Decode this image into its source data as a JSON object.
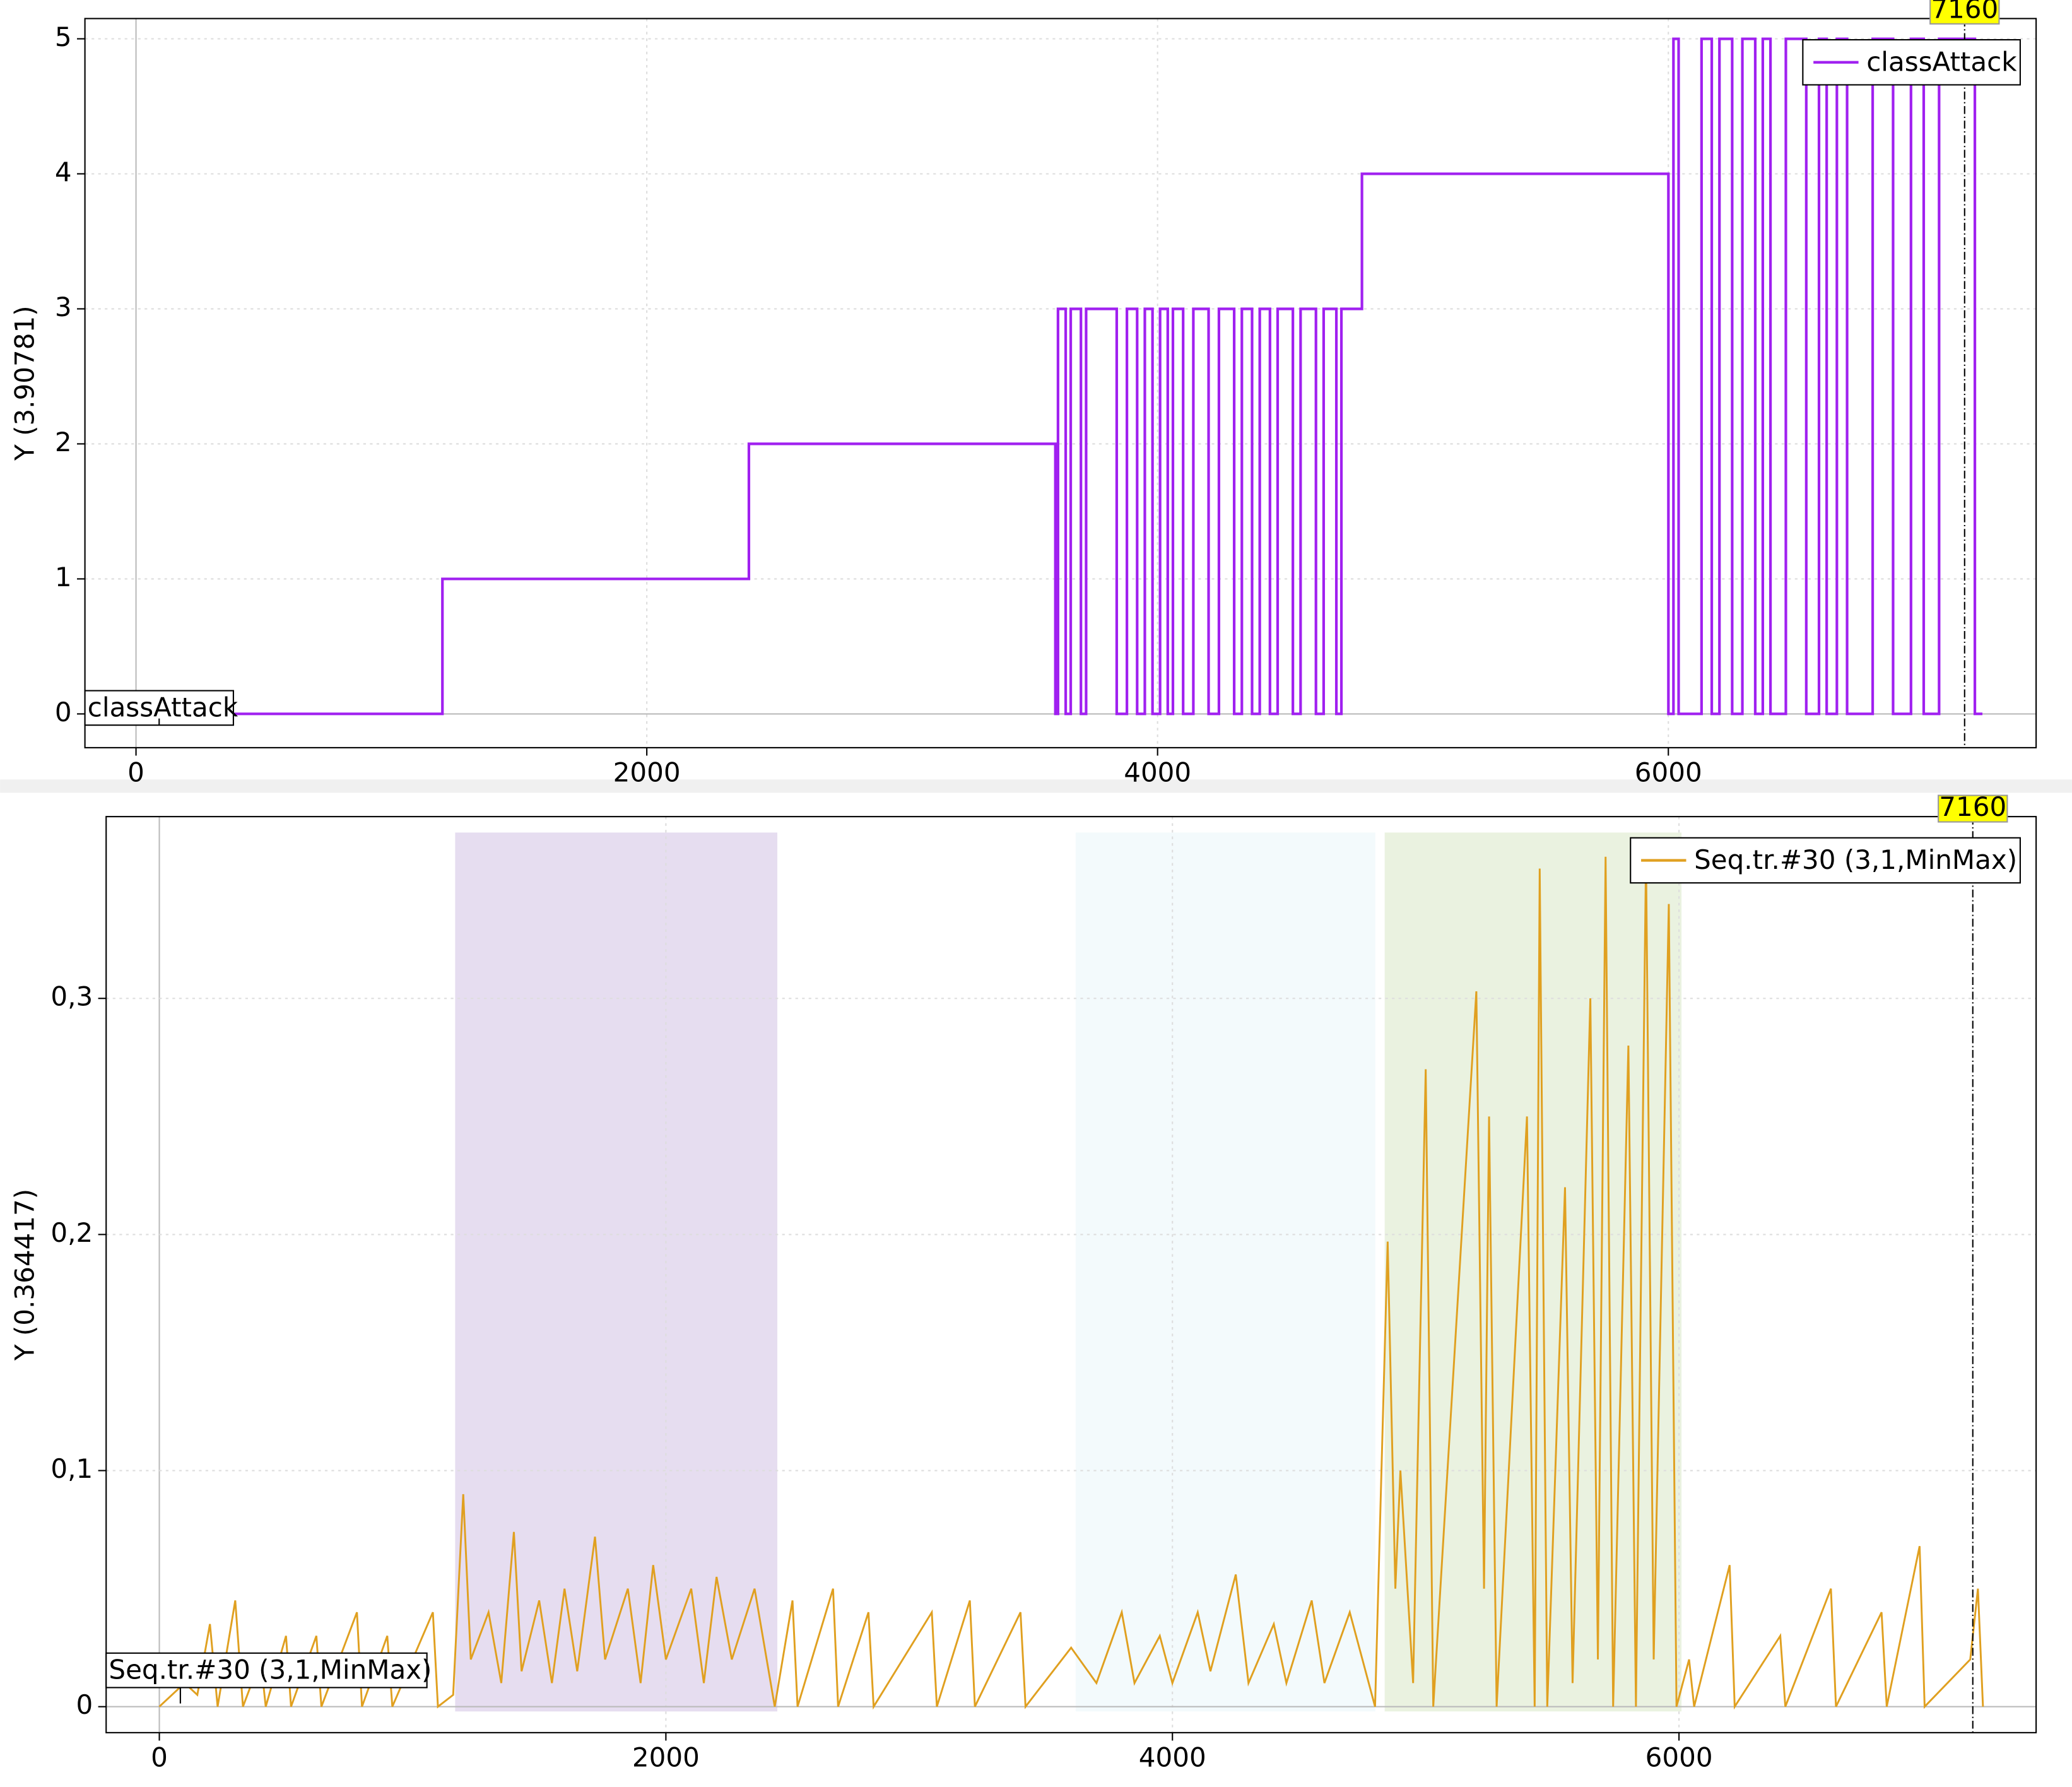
{
  "chart_data": [
    {
      "type": "line",
      "y_label": "Y (3.90781)",
      "grid": true,
      "legend": "upper right",
      "cursor_x": 7160,
      "xlim": [
        -200,
        7440
      ],
      "ylim": [
        -0.25,
        5.15
      ],
      "xticks": [
        0,
        2000,
        4000,
        6000
      ],
      "yticks": [
        0,
        1,
        2,
        3,
        4,
        5
      ],
      "x": [
        0,
        1200,
        1200,
        2400,
        2400,
        3600,
        3600,
        3610,
        3610,
        3640,
        3640,
        3660,
        3660,
        3700,
        3700,
        3720,
        3720,
        3840,
        3840,
        3880,
        3880,
        3920,
        3920,
        3950,
        3950,
        3980,
        3980,
        4010,
        4010,
        4040,
        4040,
        4060,
        4060,
        4100,
        4100,
        4140,
        4140,
        4200,
        4200,
        4240,
        4240,
        4300,
        4300,
        4330,
        4330,
        4370,
        4370,
        4400,
        4400,
        4440,
        4440,
        4470,
        4470,
        4530,
        4530,
        4560,
        4560,
        4620,
        4620,
        4650,
        4650,
        4700,
        4700,
        4720,
        4720,
        4800,
        4800,
        6000,
        6000,
        6020,
        6020,
        6040,
        6040,
        6130,
        6130,
        6170,
        6170,
        6200,
        6200,
        6250,
        6250,
        6290,
        6290,
        6340,
        6340,
        6370,
        6370,
        6400,
        6400,
        6460,
        6460,
        6540,
        6540,
        6590,
        6590,
        6620,
        6620,
        6660,
        6660,
        6700,
        6700,
        6800,
        6800,
        6880,
        6880,
        6950,
        6950,
        7000,
        7000,
        7060,
        7060,
        7200,
        7200,
        7230
      ],
      "series": [
        {
          "name": "classAttack",
          "color": "#a020f0",
          "values": [
            0,
            0,
            1,
            1,
            2,
            2,
            0,
            0,
            3,
            3,
            0,
            0,
            3,
            3,
            0,
            0,
            3,
            3,
            0,
            0,
            3,
            3,
            0,
            0,
            3,
            3,
            0,
            0,
            3,
            3,
            0,
            0,
            3,
            3,
            0,
            0,
            3,
            3,
            0,
            0,
            3,
            3,
            0,
            0,
            3,
            3,
            0,
            0,
            3,
            3,
            0,
            0,
            3,
            3,
            0,
            0,
            3,
            3,
            0,
            0,
            3,
            3,
            0,
            0,
            3,
            3,
            4,
            4,
            0,
            0,
            5,
            5,
            0,
            0,
            5,
            5,
            0,
            0,
            5,
            5,
            0,
            0,
            5,
            5,
            0,
            0,
            5,
            5,
            0,
            0,
            5,
            5,
            0,
            0,
            5,
            5,
            0,
            0,
            5,
            5,
            0,
            0,
            5,
            5,
            0,
            0,
            5,
            5,
            0,
            0,
            5,
            5,
            0,
            0
          ]
        }
      ]
    },
    {
      "type": "line",
      "y_label": "Y (0.364417)",
      "grid": true,
      "legend": "upper right",
      "cursor_x": 7160,
      "xlim": [
        -210,
        7410
      ],
      "ylim": [
        -0.011,
        0.377
      ],
      "xticks": [
        0,
        2000,
        4000,
        6000
      ],
      "yticks": [
        0,
        {
          "value": 0.1,
          "label": "0,1"
        },
        {
          "value": 0.2,
          "label": "0,2"
        },
        {
          "value": 0.3,
          "label": "0,3"
        }
      ],
      "spans": [
        {
          "x": [
            1168,
            2440
          ],
          "color": "#e6ddf0"
        },
        {
          "x": [
            3618,
            4801
          ],
          "color": "#f3fafc"
        },
        {
          "x": [
            4838,
            6010
          ],
          "color": "#eaf2e0"
        }
      ],
      "x": [
        0,
        100,
        150,
        200,
        230,
        300,
        330,
        400,
        420,
        500,
        520,
        620,
        640,
        780,
        800,
        900,
        920,
        1080,
        1100,
        1160,
        1200,
        1230,
        1300,
        1350,
        1400,
        1430,
        1500,
        1550,
        1600,
        1650,
        1720,
        1760,
        1850,
        1900,
        1950,
        2000,
        2100,
        2150,
        2200,
        2260,
        2350,
        2430,
        2500,
        2520,
        2660,
        2680,
        2800,
        2820,
        3050,
        3070,
        3200,
        3220,
        3400,
        3420,
        3600,
        3700,
        3800,
        3850,
        3950,
        4000,
        4100,
        4150,
        4250,
        4300,
        4400,
        4450,
        4550,
        4600,
        4700,
        4800,
        4850,
        4880,
        4900,
        4950,
        5000,
        5030,
        5200,
        5230,
        5250,
        5280,
        5400,
        5430,
        5450,
        5480,
        5550,
        5580,
        5650,
        5680,
        5710,
        5740,
        5800,
        5830,
        5870,
        5900,
        5960,
        5990,
        6040,
        6060,
        6200,
        6220,
        6400,
        6420,
        6600,
        6620,
        6800,
        6820,
        6950,
        6970,
        7150,
        7180,
        7200
      ],
      "series": [
        {
          "name": "Seq.tr.#30 (3,1,MinMax)",
          "color": "#e0a020",
          "values": [
            0,
            0.01,
            0.005,
            0.035,
            0,
            0.045,
            0,
            0.02,
            0,
            0.03,
            0,
            0.03,
            0,
            0.04,
            0,
            0.03,
            0,
            0.04,
            0,
            0.005,
            0.09,
            0.02,
            0.04,
            0.01,
            0.074,
            0.015,
            0.045,
            0.01,
            0.05,
            0.015,
            0.072,
            0.02,
            0.05,
            0.01,
            0.06,
            0.02,
            0.05,
            0.01,
            0.055,
            0.02,
            0.05,
            0,
            0.045,
            0,
            0.05,
            0,
            0.04,
            0,
            0.04,
            0,
            0.045,
            0,
            0.04,
            0,
            0.025,
            0.01,
            0.04,
            0.01,
            0.03,
            0.01,
            0.04,
            0.015,
            0.056,
            0.01,
            0.035,
            0.01,
            0.045,
            0.01,
            0.04,
            0,
            0.197,
            0.05,
            0.1,
            0.01,
            0.27,
            0,
            0.303,
            0.05,
            0.25,
            0,
            0.25,
            0,
            0.355,
            0,
            0.22,
            0.01,
            0.3,
            0.02,
            0.36,
            0,
            0.28,
            0,
            0.36,
            0.02,
            0.34,
            0,
            0.02,
            0,
            0.06,
            0,
            0.03,
            0,
            0.05,
            0,
            0.04,
            0,
            0.068,
            0,
            0.02,
            0.05,
            0
          ]
        }
      ]
    }
  ]
}
